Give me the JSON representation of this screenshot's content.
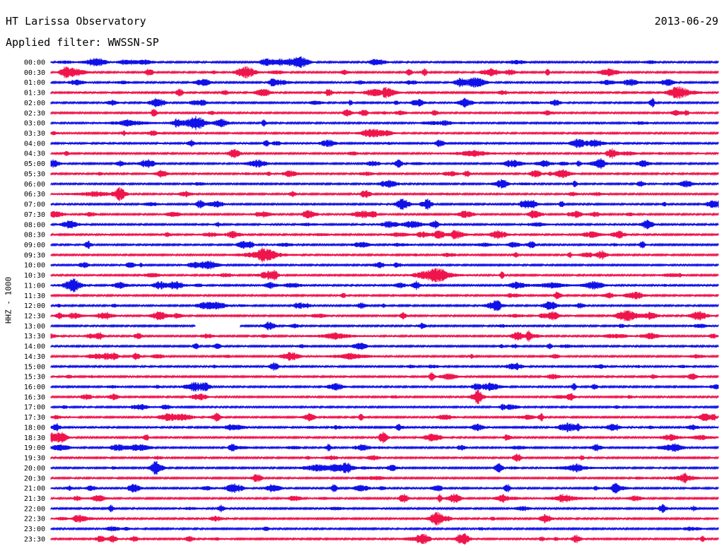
{
  "header": {
    "station": "HT Larissa Observatory",
    "filter": "Applied filter: WWSSN-SP",
    "date": "2013-06-29"
  },
  "colors": {
    "trace_a": "#1010e8",
    "trace_b": "#f0144c",
    "text": "#000000",
    "background": "#ffffff"
  },
  "chart_data": {
    "type": "line",
    "title": "HT Larissa Observatory",
    "subtitle": "Applied filter: WWSSN-SP",
    "ylabel": "HHZ - 1000",
    "xlabel": "",
    "row_labels": [
      "00:00",
      "00:30",
      "01:00",
      "01:30",
      "02:00",
      "02:30",
      "03:00",
      "03:30",
      "04:00",
      "04:30",
      "05:00",
      "05:30",
      "06:00",
      "06:30",
      "07:00",
      "07:30",
      "08:00",
      "08:30",
      "09:00",
      "09:30",
      "10:00",
      "10:30",
      "11:00",
      "11:30",
      "12:00",
      "12:30",
      "13:00",
      "13:30",
      "14:00",
      "14:30",
      "15:00",
      "15:30",
      "16:00",
      "16:30",
      "17:00",
      "17:30",
      "18:00",
      "18:30",
      "19:00",
      "19:30",
      "20:00",
      "20:30",
      "21:00",
      "21:30",
      "22:00",
      "22:30",
      "23:00",
      "23:30"
    ],
    "minutes_per_row": 30,
    "grid": false,
    "legend": "none",
    "events": [
      {
        "row": 6,
        "minute": 3.5,
        "amplitude": 5
      },
      {
        "row": 9,
        "minute": 19,
        "amplitude": 5
      },
      {
        "row": 13,
        "minute": 2,
        "amplitude": 4
      },
      {
        "row": 19,
        "minute": 9.5,
        "amplitude": 9
      },
      {
        "row": 21,
        "minute": 17.5,
        "amplitude": 5
      },
      {
        "row": 22,
        "minute": 22.5,
        "amplitude": 4
      },
      {
        "row": 27,
        "minute": 12.8,
        "amplitude": 5
      },
      {
        "row": 29,
        "minute": 13.5,
        "amplitude": 5
      },
      {
        "row": 40,
        "minute": 23.5,
        "amplitude": 4
      },
      {
        "row": 43,
        "minute": 23.2,
        "amplitude": 4
      }
    ],
    "data_gaps": [
      {
        "row": 26,
        "start_minute": 6.5,
        "end_minute": 8.5
      }
    ]
  }
}
